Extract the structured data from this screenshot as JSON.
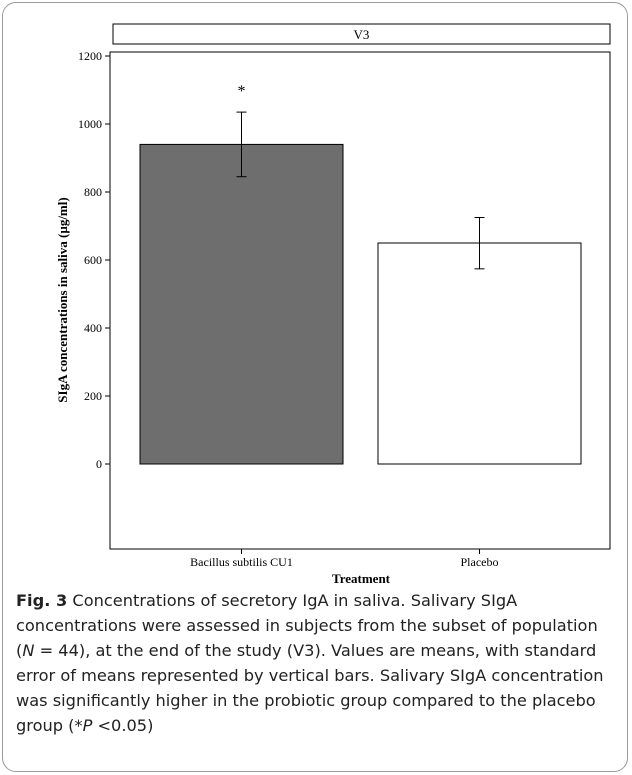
{
  "chart_data": {
    "type": "bar",
    "panel_label": "V3",
    "categories": [
      "Bacillus subtilis CU1",
      "Placebo"
    ],
    "values": [
      940,
      650
    ],
    "error": [
      {
        "low": 845,
        "high": 1035
      },
      {
        "low": 574,
        "high": 725
      }
    ],
    "annotations": [
      {
        "category": "Bacillus subtilis CU1",
        "text": "*"
      }
    ],
    "bar_colors": [
      "#6e6e6e",
      "#ffffff"
    ],
    "xlabel": "Treatment",
    "ylabel": "SIgA concentrations in saliva (µg/ml)",
    "ylim": [
      0,
      1200
    ],
    "yticks": [
      0,
      200,
      400,
      600,
      800,
      1000,
      1200
    ],
    "grid": false
  },
  "caption": {
    "label": "Fig. 3",
    "text_1": " Concentrations of secretory IgA in saliva. Salivary SIgA concentrations were assessed in subjects from the subset of population (",
    "n_symbol": "N",
    "text_2": " = 44), at the end of the study (V3). Values are means, with standard error of means represented by vertical bars. Salivary SIgA concentration was significantly higher in the probiotic group compared to the placebo group (*",
    "p_symbol": "P",
    "text_3": " <0.05)"
  }
}
